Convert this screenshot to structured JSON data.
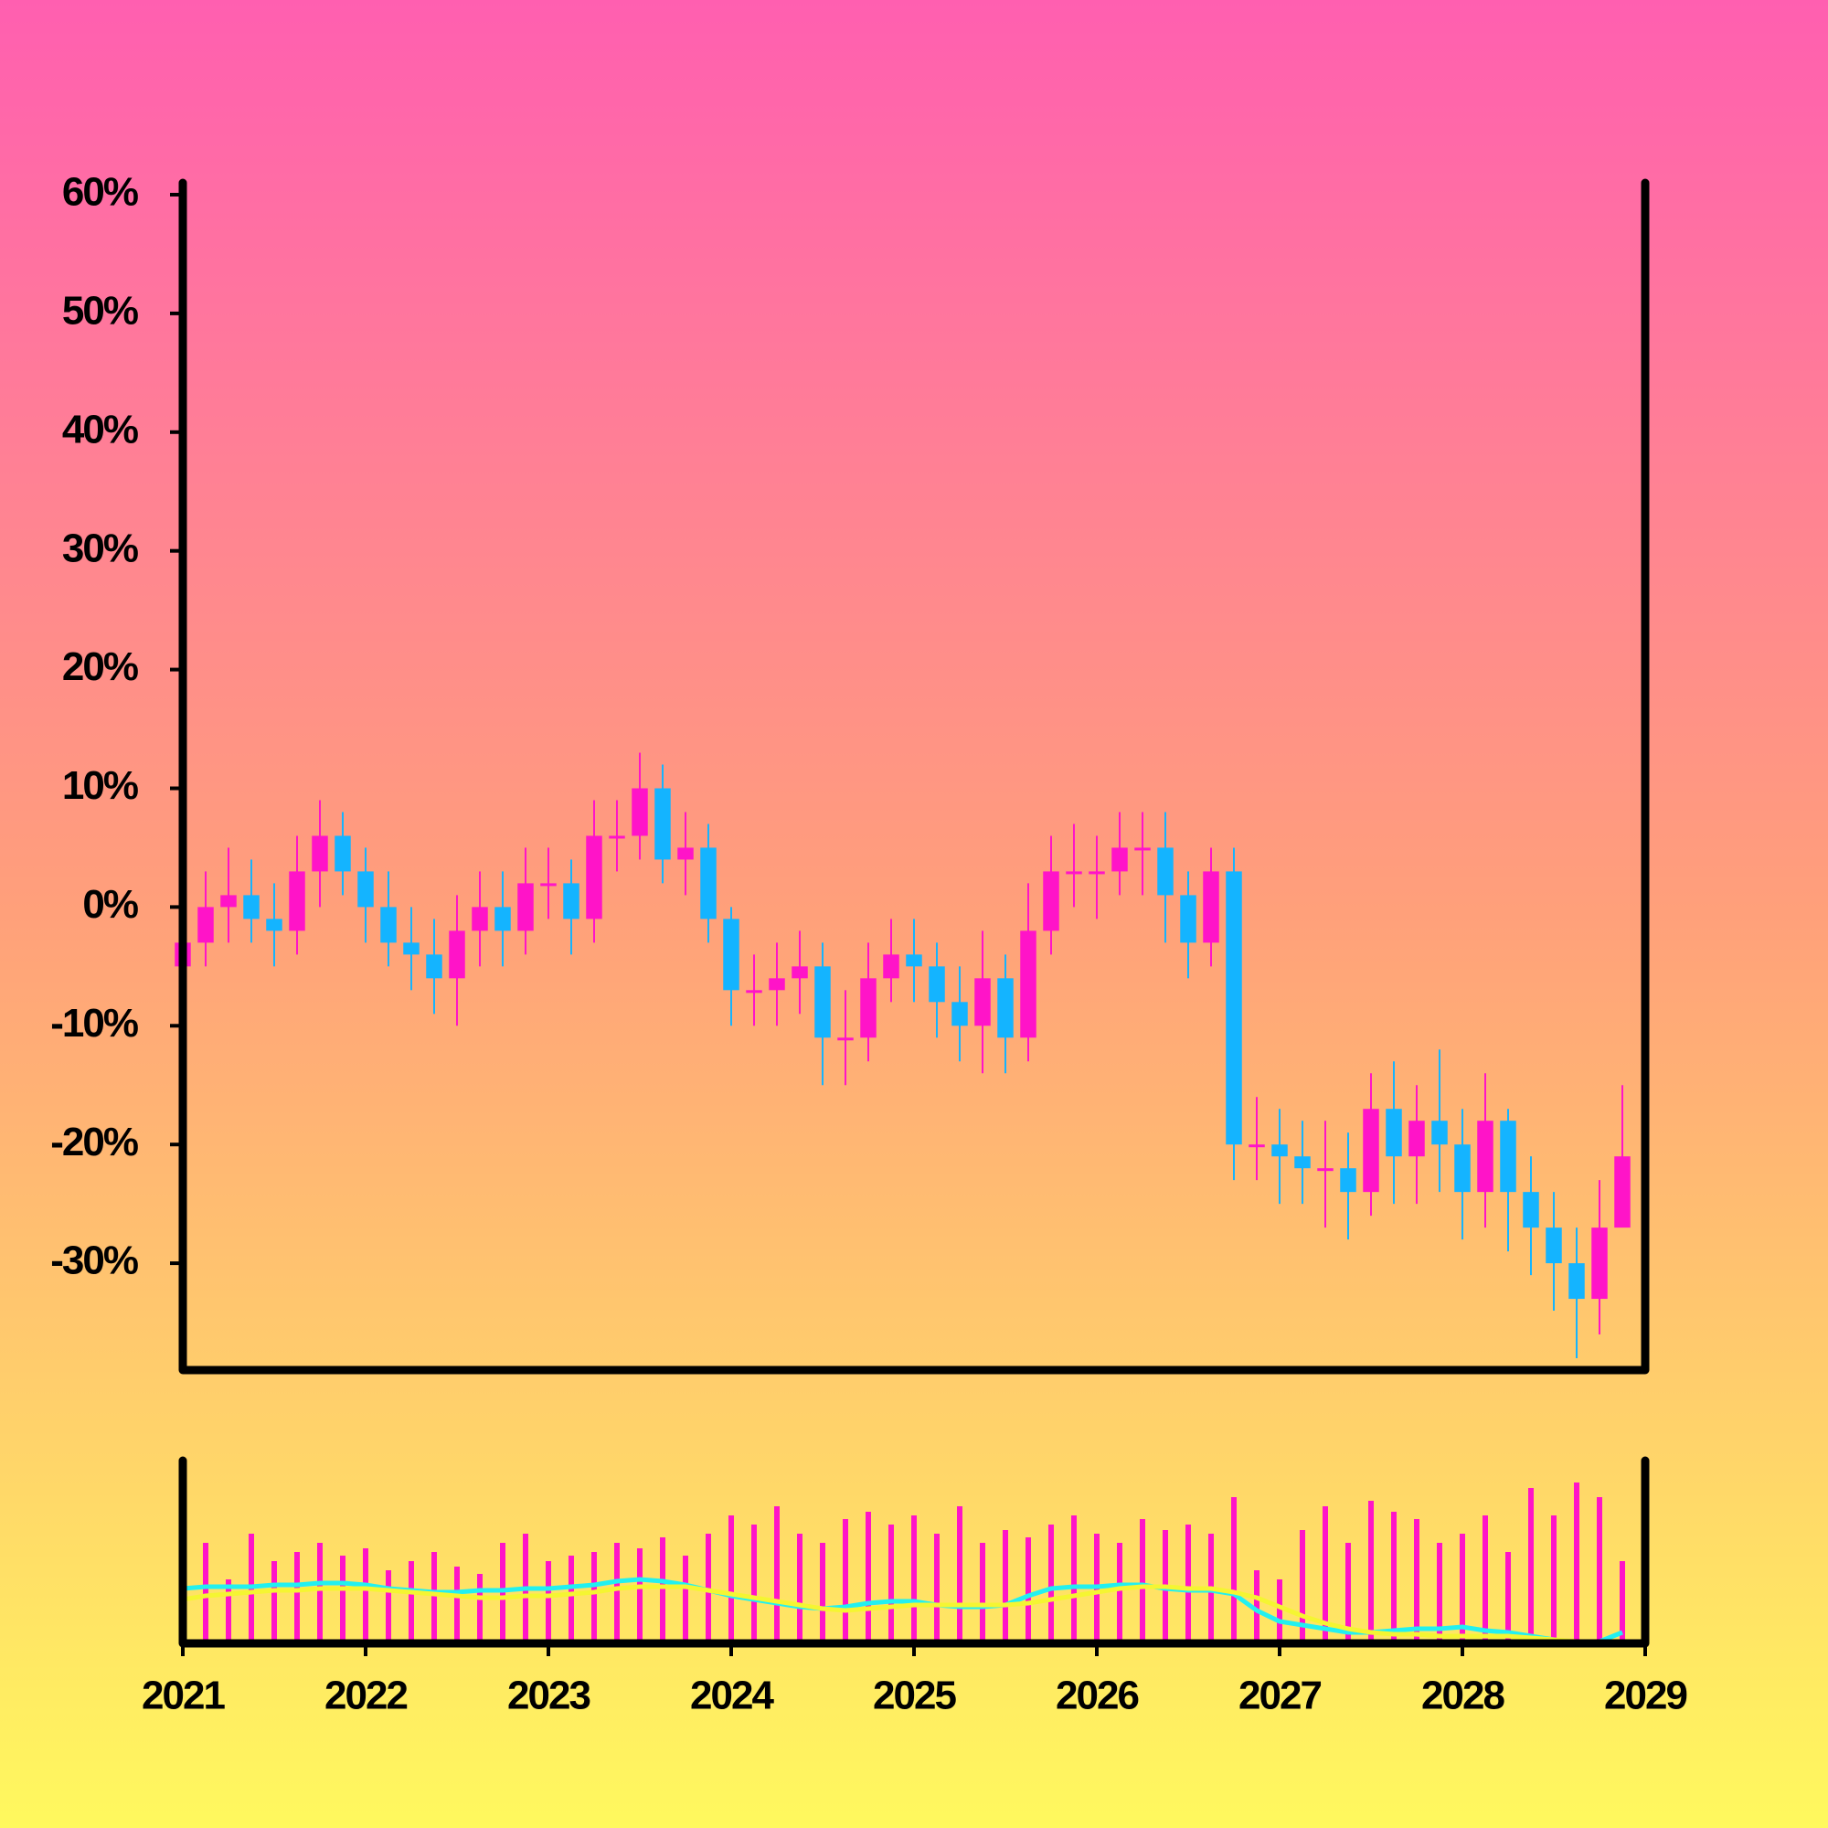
{
  "chart_data": {
    "type": "candlestick",
    "xlim": [
      2021,
      2029
    ],
    "xticks": [
      2021,
      2022,
      2023,
      2024,
      2025,
      2026,
      2027,
      2028,
      2029
    ],
    "ylim": [
      -39,
      61
    ],
    "yticks": [
      {
        "value": 60,
        "label": "60%"
      },
      {
        "value": 50,
        "label": "50%"
      },
      {
        "value": 40,
        "label": "40%"
      },
      {
        "value": 30,
        "label": "30%"
      },
      {
        "value": 20,
        "label": "20%"
      },
      {
        "value": 10,
        "label": "10%"
      },
      {
        "value": 0,
        "label": "0%"
      },
      {
        "value": -10,
        "label": "-10%"
      },
      {
        "value": -20,
        "label": "-20%"
      },
      {
        "value": -30,
        "label": "-30%"
      }
    ],
    "x": [
      2021,
      2021.125,
      2021.25,
      2021.375,
      2021.5,
      2021.625,
      2021.75,
      2021.875,
      2022,
      2022.125,
      2022.25,
      2022.375,
      2022.5,
      2022.625,
      2022.75,
      2022.875,
      2023,
      2023.125,
      2023.25,
      2023.375,
      2023.5,
      2023.625,
      2023.75,
      2023.875,
      2024,
      2024.125,
      2024.25,
      2024.375,
      2024.5,
      2024.625,
      2024.75,
      2024.875,
      2025,
      2025.125,
      2025.25,
      2025.375,
      2025.5,
      2025.625,
      2025.75,
      2025.875,
      2026,
      2026.125,
      2026.25,
      2026.375,
      2026.5,
      2026.625,
      2026.75,
      2026.875,
      2027,
      2027.125,
      2027.25,
      2027.375,
      2027.5,
      2027.625,
      2027.75,
      2027.875,
      2028,
      2028.125,
      2028.25,
      2028.375,
      2028.5,
      2028.625,
      2028.75,
      2028.875
    ],
    "open": [
      -5,
      -3,
      0,
      1,
      -1,
      -2,
      3,
      6,
      3,
      0,
      -3,
      -4,
      -6,
      -2,
      0,
      -2,
      2,
      2,
      -1,
      6,
      6,
      10,
      4,
      5,
      -1,
      -7,
      -7,
      -6,
      -5,
      -11,
      -11,
      -6,
      -4,
      -5,
      -8,
      -10,
      -6,
      -11,
      -2,
      3,
      3,
      3,
      5,
      5,
      1,
      -3,
      3,
      -20,
      -20,
      -21,
      -22,
      -22,
      -24,
      -17,
      -21,
      -18,
      -20,
      -24,
      -18,
      -24,
      -27,
      -30,
      -33,
      -27
    ],
    "high": [
      1,
      3,
      5,
      4,
      2,
      6,
      9,
      8,
      5,
      3,
      0,
      -1,
      1,
      3,
      3,
      5,
      5,
      4,
      9,
      9,
      13,
      12,
      8,
      7,
      0,
      -4,
      -3,
      -2,
      -3,
      -7,
      -3,
      -1,
      -1,
      -3,
      -5,
      -2,
      -4,
      2,
      6,
      7,
      6,
      8,
      8,
      8,
      3,
      5,
      5,
      -16,
      -17,
      -18,
      -18,
      -19,
      -14,
      -13,
      -15,
      -12,
      -17,
      -14,
      -17,
      -21,
      -24,
      -27,
      -23,
      -15
    ],
    "low": [
      -7,
      -5,
      -3,
      -3,
      -5,
      -4,
      0,
      1,
      -3,
      -5,
      -7,
      -9,
      -10,
      -5,
      -5,
      -4,
      -1,
      -4,
      -3,
      3,
      4,
      2,
      1,
      -3,
      -10,
      -10,
      -10,
      -9,
      -15,
      -15,
      -13,
      -8,
      -8,
      -11,
      -13,
      -14,
      -14,
      -13,
      -4,
      0,
      -1,
      1,
      1,
      -3,
      -6,
      -5,
      -23,
      -23,
      -25,
      -25,
      -27,
      -28,
      -26,
      -25,
      -25,
      -24,
      -28,
      -27,
      -29,
      -31,
      -34,
      -38,
      -36,
      -26
    ],
    "close": [
      -3,
      0,
      1,
      -1,
      -2,
      3,
      6,
      3,
      0,
      -3,
      -4,
      -6,
      -2,
      0,
      -2,
      2,
      2,
      -1,
      6,
      6,
      10,
      4,
      5,
      -1,
      -7,
      -7,
      -6,
      -5,
      -11,
      -11,
      -6,
      -4,
      -5,
      -8,
      -10,
      -6,
      -11,
      -2,
      3,
      3,
      3,
      5,
      5,
      1,
      -3,
      3,
      -20,
      -20,
      -21,
      -22,
      -22,
      -24,
      -17,
      -21,
      -18,
      -20,
      -24,
      -18,
      -24,
      -27,
      -30,
      -33,
      -27,
      -21
    ],
    "up_color": "#ff14c8",
    "down_color": "#14b4ff",
    "volume": {
      "color": "#ff14c8",
      "ylim": [
        0,
        100
      ],
      "values": [
        40,
        55,
        35,
        60,
        45,
        50,
        55,
        48,
        52,
        40,
        45,
        50,
        42,
        38,
        55,
        60,
        45,
        48,
        50,
        55,
        52,
        58,
        48,
        60,
        70,
        65,
        75,
        60,
        55,
        68,
        72,
        65,
        70,
        60,
        75,
        55,
        62,
        58,
        65,
        70,
        60,
        55,
        68,
        62,
        65,
        60,
        80,
        40,
        35,
        62,
        75,
        55,
        78,
        72,
        68,
        55,
        60,
        70,
        50,
        85,
        70,
        88,
        80,
        45
      ]
    },
    "volume_ma": [
      {
        "color": "#22f0f0",
        "values": [
          30,
          31,
          31,
          31,
          32,
          32,
          33,
          33,
          32,
          30,
          29,
          28,
          28,
          29,
          29,
          30,
          30,
          31,
          32,
          34,
          35,
          34,
          32,
          29,
          26,
          24,
          22,
          20,
          19,
          20,
          22,
          23,
          23,
          21,
          20,
          20,
          21,
          26,
          30,
          31,
          31,
          32,
          32,
          30,
          29,
          29,
          27,
          18,
          12,
          10,
          8,
          6,
          6,
          7,
          8,
          8,
          9,
          7,
          6,
          4,
          2,
          0,
          1,
          6
        ]
      },
      {
        "color": "#f5f532",
        "values": [
          24,
          26,
          27,
          28,
          29,
          29,
          30,
          30,
          30,
          29,
          28,
          27,
          26,
          25,
          25,
          26,
          26,
          27,
          28,
          30,
          31,
          31,
          31,
          29,
          27,
          25,
          23,
          21,
          19,
          18,
          19,
          20,
          21,
          21,
          21,
          21,
          21,
          22,
          24,
          26,
          28,
          30,
          31,
          31,
          30,
          30,
          28,
          25,
          20,
          15,
          11,
          8,
          6,
          5,
          5,
          4,
          4,
          4,
          4,
          3,
          2,
          1,
          1,
          1
        ]
      }
    ]
  }
}
